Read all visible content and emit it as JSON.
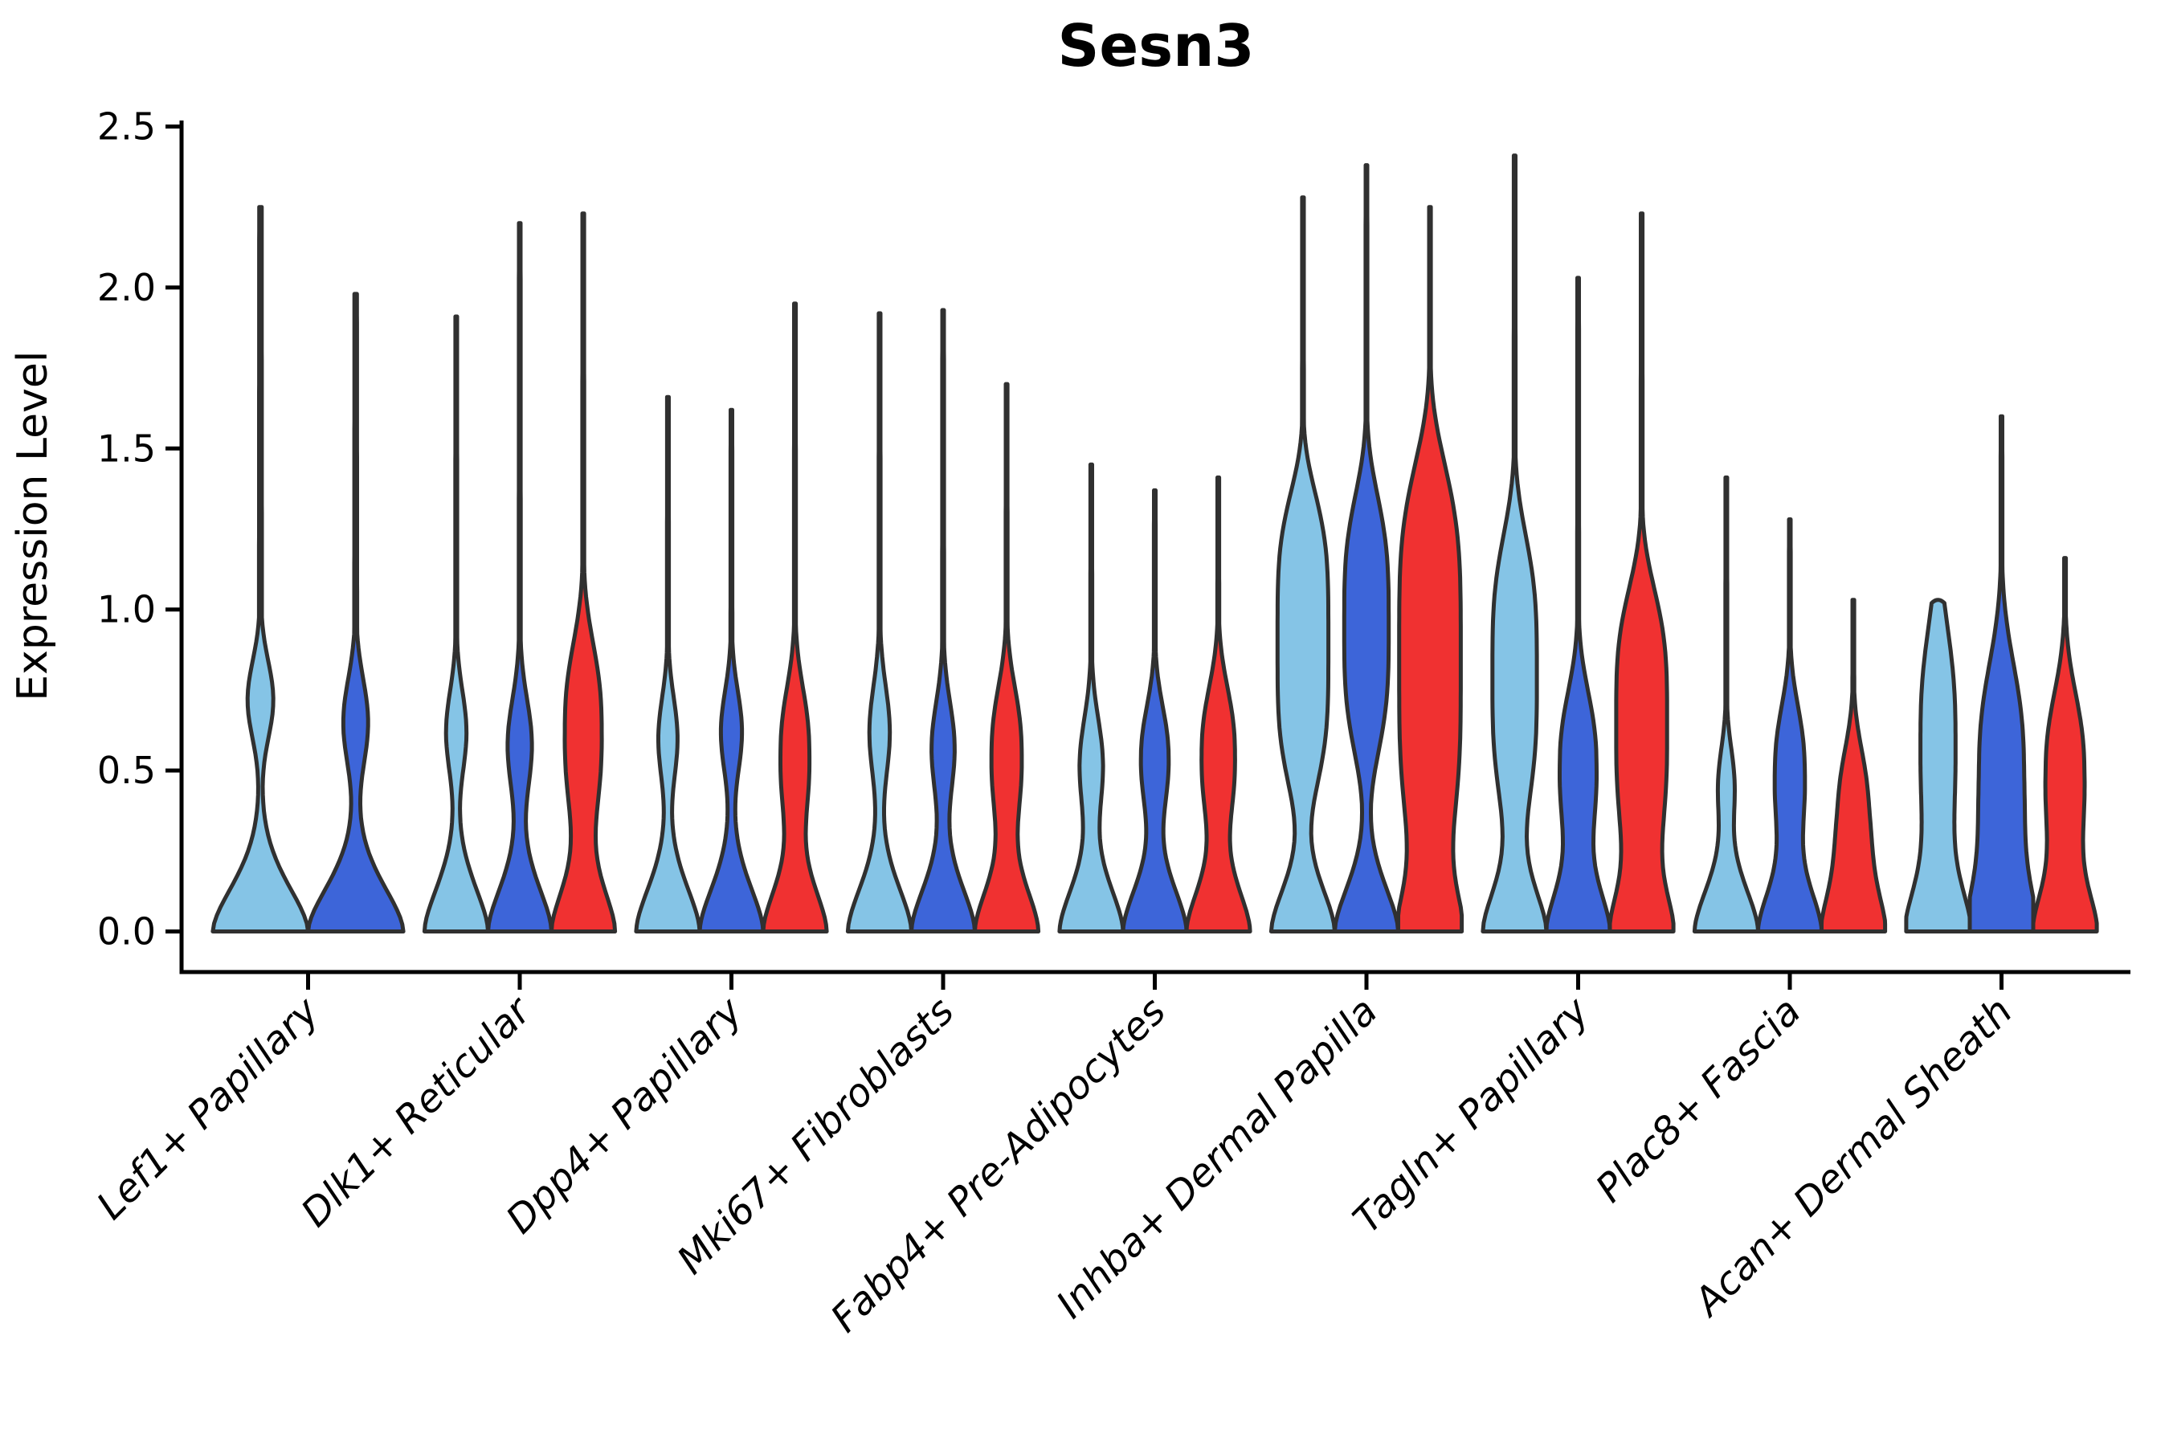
{
  "chart": {
    "title": "Sesn3",
    "ylabel": "Expression Level"
  },
  "chart_data": {
    "type": "violin",
    "title": "Sesn3",
    "xlabel": "",
    "ylabel": "Expression Level",
    "ylim": [
      -0.13,
      2.58
    ],
    "yticks": [
      0.0,
      0.5,
      1.0,
      1.5,
      2.0,
      2.5
    ],
    "grid": false,
    "legend_position": "none",
    "outline_color": "#303030",
    "axis_color": "#000000",
    "palette": {
      "light_blue": "#85C4E6",
      "dark_blue": "#3D65D9",
      "red": "#F03131"
    },
    "categories": [
      {
        "label": "Lef1+ Papillary",
        "violins": [
          {
            "color": "light_blue",
            "max_expression": 2.25,
            "bulge_center": 0.72,
            "bulge_height": 0.27,
            "bulge_spread": 0.17,
            "shape_power": 2.0,
            "blunt_top": false
          },
          {
            "color": "dark_blue",
            "max_expression": 1.98,
            "bulge_center": 0.65,
            "bulge_height": 0.26,
            "bulge_spread": 0.19,
            "shape_power": 2.0,
            "blunt_top": false
          }
        ]
      },
      {
        "label": "Dlk1+ Reticular",
        "violins": [
          {
            "color": "light_blue",
            "max_expression": 1.91,
            "bulge_center": 0.62,
            "bulge_height": 0.32,
            "bulge_spread": 0.18,
            "shape_power": 2.0,
            "blunt_top": false
          },
          {
            "color": "dark_blue",
            "max_expression": 2.2,
            "bulge_center": 0.58,
            "bulge_height": 0.38,
            "bulge_spread": 0.2,
            "shape_power": 2.0,
            "blunt_top": false
          },
          {
            "color": "red",
            "max_expression": 2.23,
            "bulge_center": 0.62,
            "bulge_height": 0.58,
            "bulge_spread": 0.33,
            "shape_power": 2.6,
            "blunt_top": false
          }
        ]
      },
      {
        "label": "Dpp4+ Papillary",
        "violins": [
          {
            "color": "light_blue",
            "max_expression": 1.66,
            "bulge_center": 0.6,
            "bulge_height": 0.3,
            "bulge_spread": 0.18,
            "shape_power": 2.0,
            "blunt_top": false
          },
          {
            "color": "dark_blue",
            "max_expression": 1.62,
            "bulge_center": 0.62,
            "bulge_height": 0.33,
            "bulge_spread": 0.18,
            "shape_power": 2.0,
            "blunt_top": false
          },
          {
            "color": "red",
            "max_expression": 1.95,
            "bulge_center": 0.55,
            "bulge_height": 0.45,
            "bulge_spread": 0.26,
            "shape_power": 2.4,
            "blunt_top": false
          }
        ]
      },
      {
        "label": "Mki67+ Fibroblasts",
        "violins": [
          {
            "color": "light_blue",
            "max_expression": 1.92,
            "bulge_center": 0.62,
            "bulge_height": 0.32,
            "bulge_spread": 0.2,
            "shape_power": 2.0,
            "blunt_top": false
          },
          {
            "color": "dark_blue",
            "max_expression": 1.93,
            "bulge_center": 0.57,
            "bulge_height": 0.36,
            "bulge_spread": 0.2,
            "shape_power": 2.0,
            "blunt_top": false
          },
          {
            "color": "red",
            "max_expression": 1.7,
            "bulge_center": 0.55,
            "bulge_height": 0.47,
            "bulge_spread": 0.26,
            "shape_power": 2.4,
            "blunt_top": false
          }
        ]
      },
      {
        "label": "Fabp4+ Pre-Adipocytes",
        "violins": [
          {
            "color": "light_blue",
            "max_expression": 1.45,
            "bulge_center": 0.52,
            "bulge_height": 0.36,
            "bulge_spread": 0.2,
            "shape_power": 2.0,
            "blunt_top": false
          },
          {
            "color": "dark_blue",
            "max_expression": 1.37,
            "bulge_center": 0.54,
            "bulge_height": 0.43,
            "bulge_spread": 0.21,
            "shape_power": 2.2,
            "blunt_top": false
          },
          {
            "color": "red",
            "max_expression": 1.41,
            "bulge_center": 0.55,
            "bulge_height": 0.52,
            "bulge_spread": 0.26,
            "shape_power": 2.4,
            "blunt_top": false
          }
        ]
      },
      {
        "label": "Inhba+ Dermal Papilla",
        "violins": [
          {
            "color": "light_blue",
            "max_expression": 2.28,
            "bulge_center": 0.9,
            "bulge_height": 0.8,
            "bulge_spread": 0.5,
            "shape_power": 4.0,
            "blunt_top": false
          },
          {
            "color": "dark_blue",
            "max_expression": 2.38,
            "bulge_center": 0.95,
            "bulge_height": 0.7,
            "bulge_spread": 0.45,
            "shape_power": 3.4,
            "blunt_top": false
          },
          {
            "color": "red",
            "max_expression": 2.25,
            "bulge_center": 0.85,
            "bulge_height": 0.97,
            "bulge_spread": 0.65,
            "shape_power": 4.0,
            "blunt_top": false
          }
        ]
      },
      {
        "label": "Tagln+ Papillary",
        "violins": [
          {
            "color": "light_blue",
            "max_expression": 2.41,
            "bulge_center": 0.8,
            "bulge_height": 0.7,
            "bulge_spread": 0.48,
            "shape_power": 3.4,
            "blunt_top": false
          },
          {
            "color": "dark_blue",
            "max_expression": 2.03,
            "bulge_center": 0.52,
            "bulge_height": 0.57,
            "bulge_spread": 0.28,
            "shape_power": 2.4,
            "blunt_top": false
          },
          {
            "color": "red",
            "max_expression": 2.23,
            "bulge_center": 0.66,
            "bulge_height": 0.8,
            "bulge_spread": 0.45,
            "shape_power": 3.4,
            "blunt_top": false
          }
        ]
      },
      {
        "label": "Plac8+ Fascia",
        "violins": [
          {
            "color": "light_blue",
            "max_expression": 1.41,
            "bulge_center": 0.46,
            "bulge_height": 0.24,
            "bulge_spread": 0.16,
            "shape_power": 2.0,
            "blunt_top": false
          },
          {
            "color": "dark_blue",
            "max_expression": 1.28,
            "bulge_center": 0.5,
            "bulge_height": 0.46,
            "bulge_spread": 0.25,
            "shape_power": 2.4,
            "blunt_top": false
          },
          {
            "color": "red",
            "max_expression": 1.03,
            "bulge_center": 0.38,
            "bulge_height": 0.44,
            "bulge_spread": 0.24,
            "shape_power": 2.4,
            "blunt_top": false
          }
        ]
      },
      {
        "label": "Acan+ Dermal Sheath",
        "violins": [
          {
            "color": "light_blue",
            "max_expression": 1.02,
            "bulge_center": 0.6,
            "bulge_height": 0.55,
            "bulge_spread": 0.42,
            "shape_power": 2.6,
            "blunt_top": true
          },
          {
            "color": "dark_blue",
            "max_expression": 1.6,
            "bulge_center": 0.5,
            "bulge_height": 0.7,
            "bulge_spread": 0.4,
            "shape_power": 2.6,
            "blunt_top": false
          },
          {
            "color": "red",
            "max_expression": 1.16,
            "bulge_center": 0.5,
            "bulge_height": 0.6,
            "bulge_spread": 0.3,
            "shape_power": 2.4,
            "blunt_top": false
          }
        ]
      }
    ]
  }
}
